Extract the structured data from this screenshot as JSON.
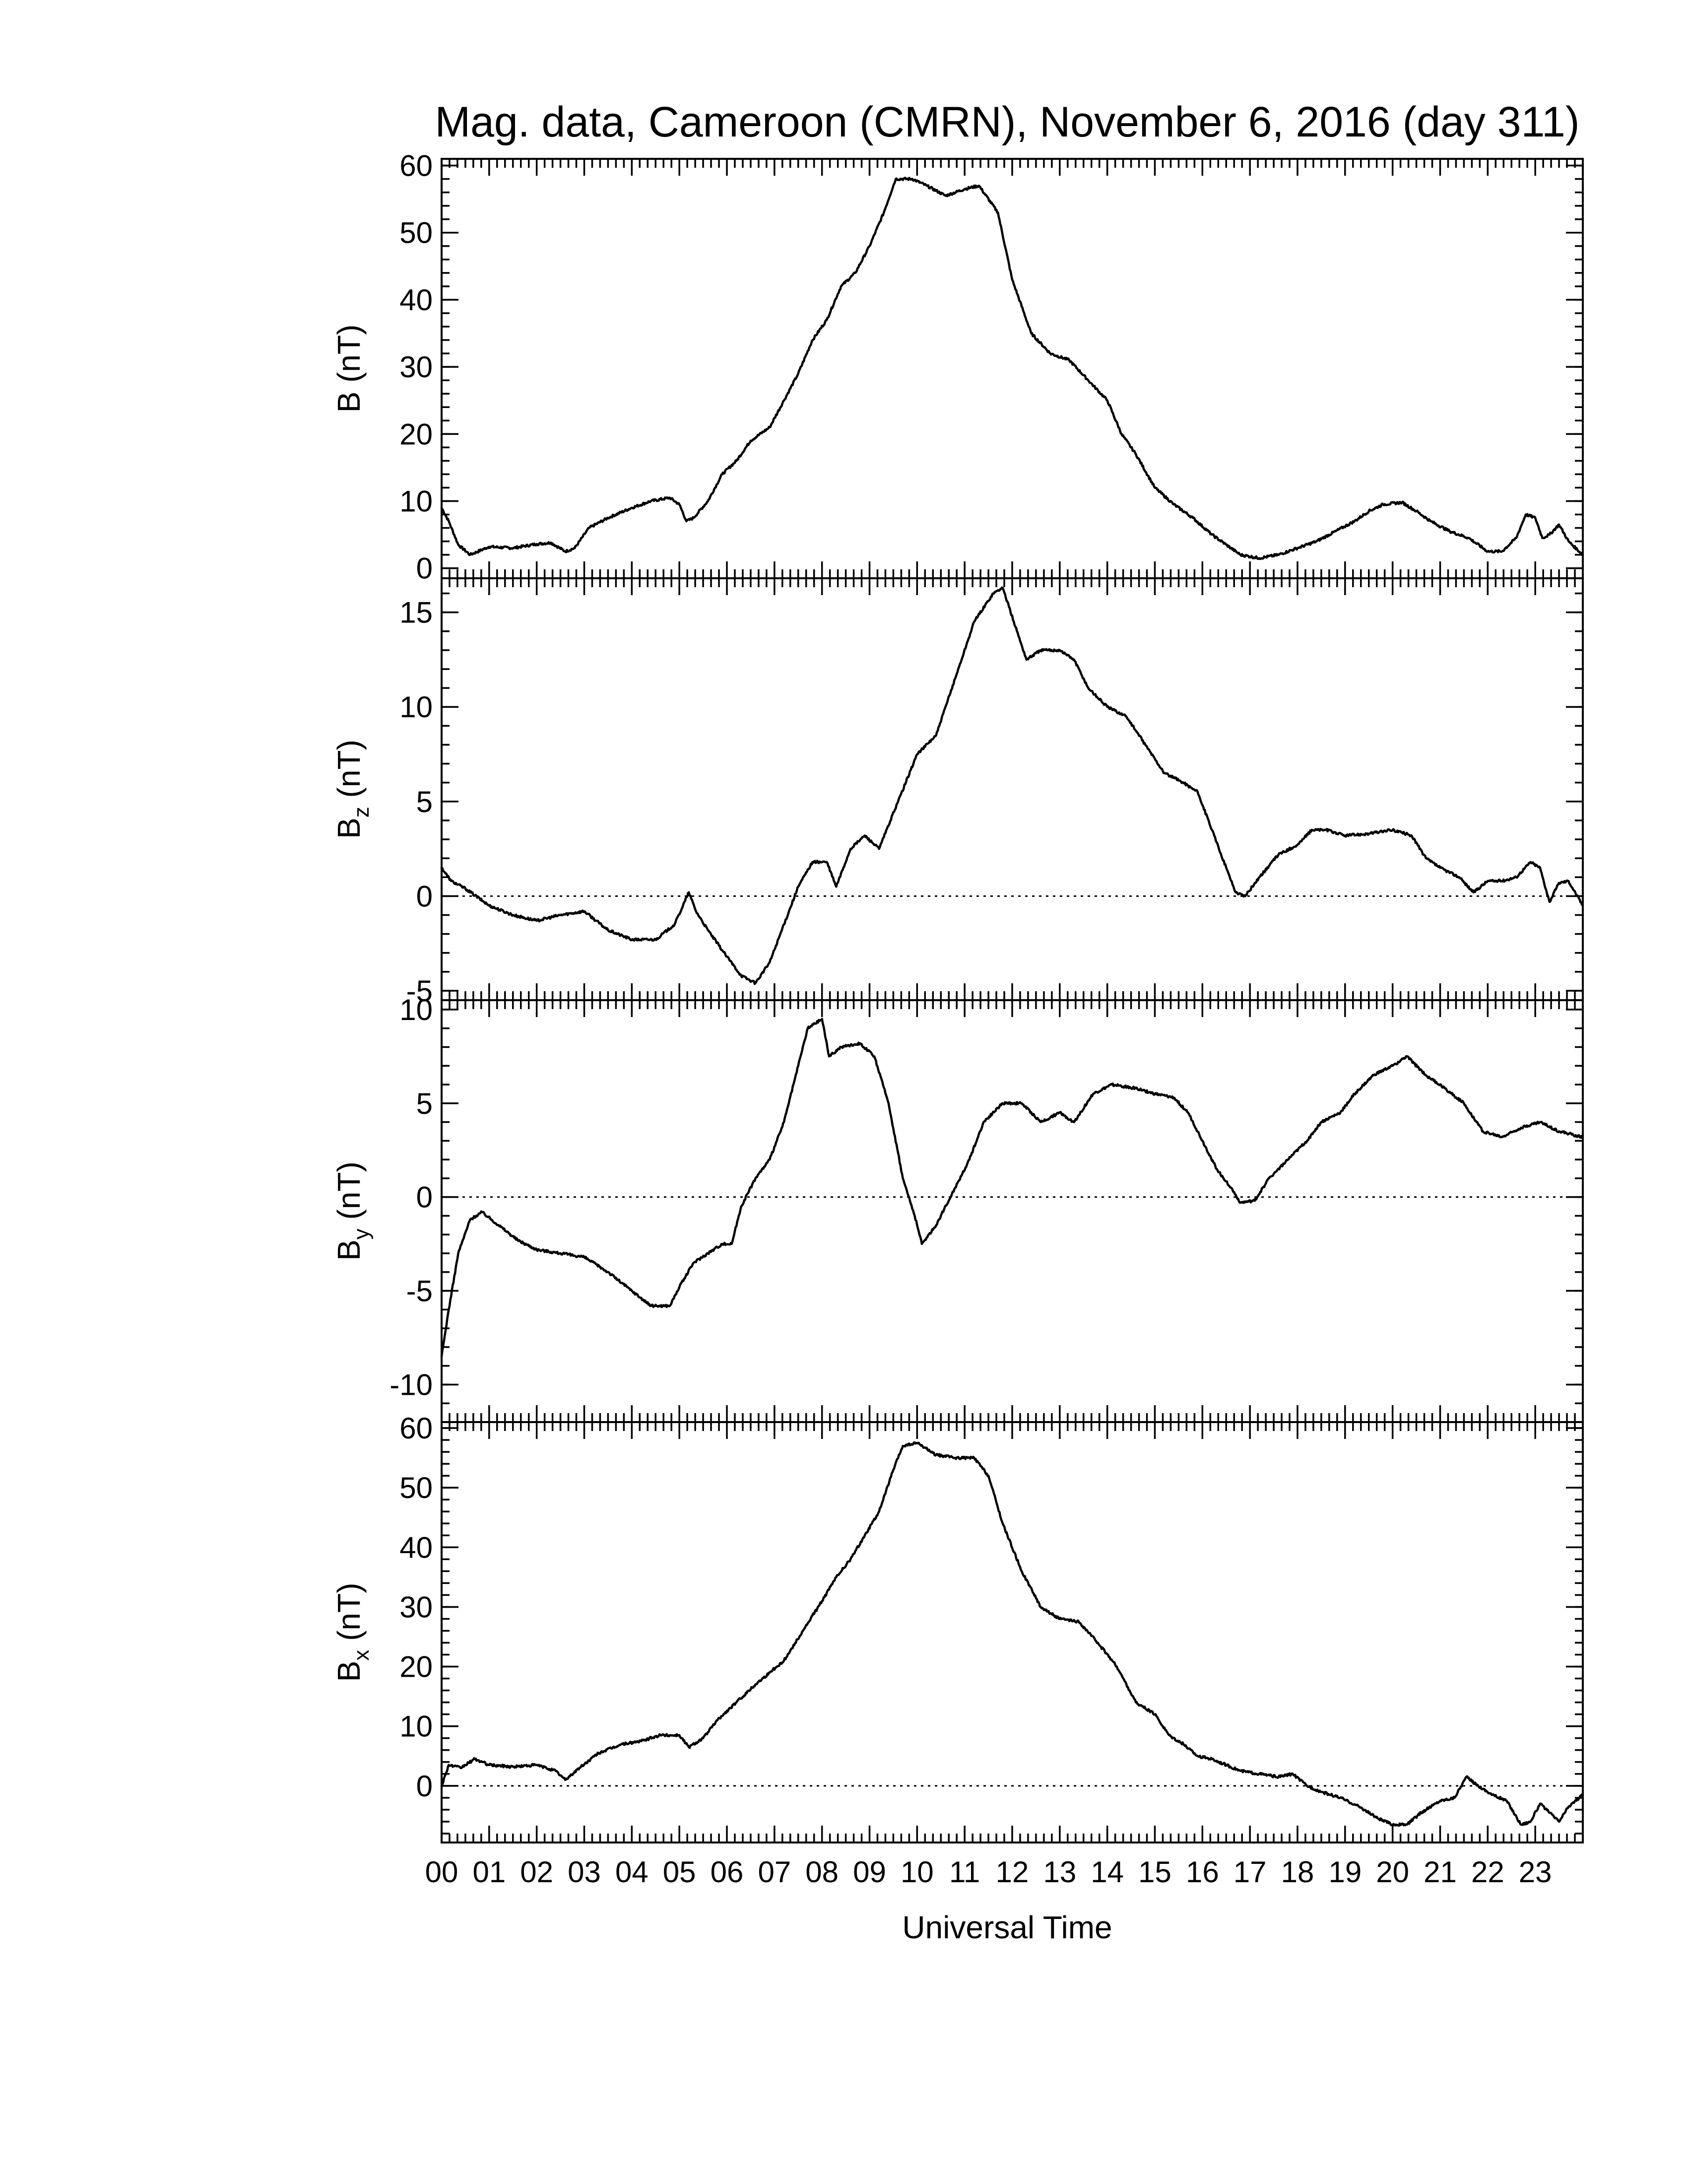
{
  "chart_data": {
    "type": "line",
    "title": "Mag. data, Cameroon (CMRN), November 6, 2016 (day 311)",
    "xlabel": "Universal Time",
    "xlim": [
      0,
      24
    ],
    "x_tick_labels": [
      "00",
      "01",
      "02",
      "03",
      "04",
      "05",
      "06",
      "07",
      "08",
      "09",
      "10",
      "11",
      "12",
      "13",
      "14",
      "15",
      "16",
      "17",
      "18",
      "19",
      "20",
      "21",
      "22",
      "23"
    ],
    "panels": [
      {
        "id": "B",
        "ylabel_main": "B",
        "ylabel_sub": "",
        "ylabel_unit": "(nT)",
        "ylim": [
          -1.5,
          61
        ],
        "yticks": [
          0,
          10,
          20,
          30,
          40,
          50,
          60
        ],
        "minor_step": 2,
        "zero_line": false,
        "points": [
          [
            0,
            9
          ],
          [
            0.15,
            7
          ],
          [
            0.35,
            3.5
          ],
          [
            0.6,
            2
          ],
          [
            1.0,
            3.2
          ],
          [
            1.5,
            3
          ],
          [
            2.0,
            3.6
          ],
          [
            2.3,
            3.8
          ],
          [
            2.6,
            2.5
          ],
          [
            2.8,
            3
          ],
          [
            3.1,
            6
          ],
          [
            3.5,
            7.5
          ],
          [
            4.0,
            9
          ],
          [
            4.4,
            10
          ],
          [
            4.8,
            10.5
          ],
          [
            5.0,
            9.5
          ],
          [
            5.15,
            7
          ],
          [
            5.3,
            7.5
          ],
          [
            5.6,
            10
          ],
          [
            5.9,
            14
          ],
          [
            6.2,
            16
          ],
          [
            6.5,
            19
          ],
          [
            6.9,
            21
          ],
          [
            7.2,
            25
          ],
          [
            7.5,
            29
          ],
          [
            7.8,
            34
          ],
          [
            8.1,
            37
          ],
          [
            8.4,
            42
          ],
          [
            8.7,
            44
          ],
          [
            9.0,
            48
          ],
          [
            9.3,
            53
          ],
          [
            9.55,
            58
          ],
          [
            9.9,
            58
          ],
          [
            10.2,
            57
          ],
          [
            10.6,
            55.5
          ],
          [
            11.0,
            56.5
          ],
          [
            11.3,
            57
          ],
          [
            11.7,
            53
          ],
          [
            12.0,
            43
          ],
          [
            12.4,
            35
          ],
          [
            12.8,
            32
          ],
          [
            13.2,
            31
          ],
          [
            13.6,
            28
          ],
          [
            14.0,
            25
          ],
          [
            14.3,
            20
          ],
          [
            14.6,
            17
          ],
          [
            15.0,
            12
          ],
          [
            15.4,
            9.5
          ],
          [
            15.8,
            7.5
          ],
          [
            16.2,
            5
          ],
          [
            16.5,
            3.5
          ],
          [
            16.8,
            2
          ],
          [
            17.2,
            1.5
          ],
          [
            17.6,
            2
          ],
          [
            18.0,
            3
          ],
          [
            18.4,
            4
          ],
          [
            18.8,
            5.5
          ],
          [
            19.2,
            7
          ],
          [
            19.5,
            8.5
          ],
          [
            19.8,
            9.5
          ],
          [
            20.2,
            9.8
          ],
          [
            20.5,
            8.5
          ],
          [
            20.8,
            7
          ],
          [
            21.2,
            5.5
          ],
          [
            21.6,
            4.5
          ],
          [
            22.0,
            2.5
          ],
          [
            22.3,
            2.5
          ],
          [
            22.6,
            4.5
          ],
          [
            22.8,
            8
          ],
          [
            23.0,
            7.5
          ],
          [
            23.15,
            4.5
          ],
          [
            23.3,
            5
          ],
          [
            23.5,
            6.5
          ],
          [
            23.7,
            4
          ],
          [
            24.0,
            2
          ]
        ]
      },
      {
        "id": "Bz",
        "ylabel_main": "B",
        "ylabel_sub": "z",
        "ylabel_unit": "(nT)",
        "ylim": [
          -5.5,
          16.8
        ],
        "yticks": [
          -5,
          0,
          5,
          10,
          15
        ],
        "minor_step": 1,
        "zero_line": true,
        "points": [
          [
            0,
            1.5
          ],
          [
            0.2,
            0.8
          ],
          [
            0.5,
            0.4
          ],
          [
            1.0,
            -0.5
          ],
          [
            1.5,
            -1
          ],
          [
            2.0,
            -1.3
          ],
          [
            2.5,
            -1
          ],
          [
            3.0,
            -0.8
          ],
          [
            3.5,
            -1.8
          ],
          [
            4.0,
            -2.3
          ],
          [
            4.5,
            -2.3
          ],
          [
            4.9,
            -1.5
          ],
          [
            5.2,
            0.2
          ],
          [
            5.35,
            -0.8
          ],
          [
            5.6,
            -1.8
          ],
          [
            6.0,
            -3.2
          ],
          [
            6.3,
            -4.2
          ],
          [
            6.6,
            -4.6
          ],
          [
            6.9,
            -3.5
          ],
          [
            7.2,
            -1.5
          ],
          [
            7.5,
            0.5
          ],
          [
            7.8,
            1.8
          ],
          [
            8.1,
            1.8
          ],
          [
            8.3,
            0.5
          ],
          [
            8.6,
            2.5
          ],
          [
            8.9,
            3.2
          ],
          [
            9.2,
            2.5
          ],
          [
            9.6,
            5
          ],
          [
            10.0,
            7.5
          ],
          [
            10.4,
            8.5
          ],
          [
            10.8,
            11.5
          ],
          [
            11.2,
            14.5
          ],
          [
            11.6,
            16
          ],
          [
            11.8,
            16.3
          ],
          [
            12.1,
            14
          ],
          [
            12.3,
            12.5
          ],
          [
            12.6,
            13
          ],
          [
            13.0,
            13
          ],
          [
            13.3,
            12.5
          ],
          [
            13.6,
            11
          ],
          [
            14.0,
            10
          ],
          [
            14.4,
            9.5
          ],
          [
            14.8,
            8
          ],
          [
            15.2,
            6.5
          ],
          [
            15.6,
            6
          ],
          [
            15.9,
            5.5
          ],
          [
            16.2,
            3.5
          ],
          [
            16.5,
            1.5
          ],
          [
            16.7,
            0.2
          ],
          [
            16.9,
            0
          ],
          [
            17.2,
            1
          ],
          [
            17.6,
            2.2
          ],
          [
            18.0,
            2.7
          ],
          [
            18.3,
            3.5
          ],
          [
            18.6,
            3.5
          ],
          [
            19.0,
            3.2
          ],
          [
            19.5,
            3.3
          ],
          [
            20.0,
            3.5
          ],
          [
            20.4,
            3.2
          ],
          [
            20.7,
            2
          ],
          [
            21.0,
            1.5
          ],
          [
            21.4,
            1
          ],
          [
            21.7,
            0.2
          ],
          [
            22.0,
            0.8
          ],
          [
            22.3,
            0.8
          ],
          [
            22.6,
            1
          ],
          [
            22.9,
            1.8
          ],
          [
            23.1,
            1.5
          ],
          [
            23.3,
            -0.3
          ],
          [
            23.5,
            0.7
          ],
          [
            23.7,
            0.8
          ],
          [
            24.0,
            -0.5
          ]
        ]
      },
      {
        "id": "By",
        "ylabel_main": "B",
        "ylabel_sub": "y",
        "ylabel_unit": "(nT)",
        "ylim": [
          -12,
          10.5
        ],
        "yticks": [
          -10,
          -5,
          0,
          5,
          10
        ],
        "minor_step": 1,
        "zero_line": true,
        "points": [
          [
            0,
            -8.5
          ],
          [
            0.15,
            -6
          ],
          [
            0.35,
            -3
          ],
          [
            0.6,
            -1.2
          ],
          [
            0.85,
            -0.8
          ],
          [
            1.2,
            -1.5
          ],
          [
            1.6,
            -2.3
          ],
          [
            2.0,
            -2.8
          ],
          [
            2.5,
            -3
          ],
          [
            3.0,
            -3.2
          ],
          [
            3.5,
            -4
          ],
          [
            4.0,
            -5
          ],
          [
            4.4,
            -5.8
          ],
          [
            4.8,
            -5.8
          ],
          [
            5.0,
            -4.8
          ],
          [
            5.3,
            -3.5
          ],
          [
            5.6,
            -3
          ],
          [
            5.9,
            -2.5
          ],
          [
            6.1,
            -2.5
          ],
          [
            6.3,
            -0.5
          ],
          [
            6.6,
            1
          ],
          [
            6.9,
            2
          ],
          [
            7.2,
            4
          ],
          [
            7.5,
            7
          ],
          [
            7.7,
            9
          ],
          [
            8.0,
            9.5
          ],
          [
            8.15,
            7.5
          ],
          [
            8.4,
            8
          ],
          [
            8.8,
            8.2
          ],
          [
            9.1,
            7.5
          ],
          [
            9.4,
            5
          ],
          [
            9.7,
            1
          ],
          [
            9.95,
            -1
          ],
          [
            10.1,
            -2.5
          ],
          [
            10.4,
            -1.5
          ],
          [
            10.8,
            0.5
          ],
          [
            11.1,
            2
          ],
          [
            11.4,
            4
          ],
          [
            11.8,
            5
          ],
          [
            12.2,
            5
          ],
          [
            12.6,
            4
          ],
          [
            13.0,
            4.5
          ],
          [
            13.3,
            4
          ],
          [
            13.7,
            5.5
          ],
          [
            14.1,
            6
          ],
          [
            14.6,
            5.8
          ],
          [
            15.0,
            5.5
          ],
          [
            15.4,
            5.3
          ],
          [
            15.7,
            4.5
          ],
          [
            16.0,
            3
          ],
          [
            16.3,
            1.5
          ],
          [
            16.6,
            0.5
          ],
          [
            16.8,
            -0.3
          ],
          [
            17.1,
            -0.2
          ],
          [
            17.4,
            1
          ],
          [
            17.8,
            2
          ],
          [
            18.2,
            3
          ],
          [
            18.5,
            4
          ],
          [
            18.9,
            4.5
          ],
          [
            19.2,
            5.5
          ],
          [
            19.6,
            6.5
          ],
          [
            20.0,
            7
          ],
          [
            20.3,
            7.5
          ],
          [
            20.7,
            6.5
          ],
          [
            21.1,
            5.8
          ],
          [
            21.5,
            5
          ],
          [
            21.9,
            3.5
          ],
          [
            22.3,
            3.2
          ],
          [
            22.7,
            3.7
          ],
          [
            23.1,
            4
          ],
          [
            23.5,
            3.5
          ],
          [
            24.0,
            3.2
          ]
        ]
      },
      {
        "id": "Bx",
        "ylabel_main": "B",
        "ylabel_sub": "x",
        "ylabel_unit": "(nT)",
        "ylim": [
          -9.5,
          61
        ],
        "yticks": [
          0,
          10,
          20,
          30,
          40,
          50,
          60
        ],
        "minor_step": 2,
        "zero_line": true,
        "points": [
          [
            0,
            0
          ],
          [
            0.15,
            3.5
          ],
          [
            0.4,
            3
          ],
          [
            0.7,
            4.5
          ],
          [
            1.0,
            3.5
          ],
          [
            1.5,
            3.2
          ],
          [
            2.0,
            3.5
          ],
          [
            2.4,
            2.5
          ],
          [
            2.6,
            1
          ],
          [
            2.9,
            3
          ],
          [
            3.3,
            5.5
          ],
          [
            3.8,
            7
          ],
          [
            4.2,
            7.5
          ],
          [
            4.6,
            8.5
          ],
          [
            5.0,
            8.5
          ],
          [
            5.2,
            6.5
          ],
          [
            5.5,
            8
          ],
          [
            5.8,
            11
          ],
          [
            6.2,
            14
          ],
          [
            6.6,
            17
          ],
          [
            6.9,
            19
          ],
          [
            7.2,
            21
          ],
          [
            7.6,
            26
          ],
          [
            8.0,
            31
          ],
          [
            8.3,
            35
          ],
          [
            8.6,
            38
          ],
          [
            8.9,
            42
          ],
          [
            9.2,
            46
          ],
          [
            9.5,
            53
          ],
          [
            9.7,
            57
          ],
          [
            10.0,
            57.5
          ],
          [
            10.4,
            55.5
          ],
          [
            10.8,
            55
          ],
          [
            11.2,
            55
          ],
          [
            11.5,
            52
          ],
          [
            11.8,
            44
          ],
          [
            12.2,
            36
          ],
          [
            12.6,
            30
          ],
          [
            13.0,
            28
          ],
          [
            13.4,
            27.5
          ],
          [
            13.8,
            24
          ],
          [
            14.2,
            20
          ],
          [
            14.6,
            14
          ],
          [
            15.0,
            12
          ],
          [
            15.3,
            8.5
          ],
          [
            15.6,
            7
          ],
          [
            15.9,
            5
          ],
          [
            16.2,
            4.5
          ],
          [
            16.5,
            3.5
          ],
          [
            16.8,
            2.5
          ],
          [
            17.2,
            2
          ],
          [
            17.6,
            1.5
          ],
          [
            17.9,
            2
          ],
          [
            18.2,
            0
          ],
          [
            18.5,
            -1
          ],
          [
            18.9,
            -2
          ],
          [
            19.3,
            -3.5
          ],
          [
            19.7,
            -5.5
          ],
          [
            20.0,
            -6.5
          ],
          [
            20.3,
            -6.5
          ],
          [
            20.6,
            -4.5
          ],
          [
            21.0,
            -2.5
          ],
          [
            21.3,
            -2
          ],
          [
            21.55,
            1.5
          ],
          [
            21.8,
            0
          ],
          [
            22.1,
            -1.5
          ],
          [
            22.4,
            -2.5
          ],
          [
            22.7,
            -6.5
          ],
          [
            22.9,
            -6
          ],
          [
            23.1,
            -3
          ],
          [
            23.3,
            -4.5
          ],
          [
            23.5,
            -6
          ],
          [
            23.7,
            -3.5
          ],
          [
            24.0,
            -1.5
          ]
        ]
      }
    ]
  }
}
